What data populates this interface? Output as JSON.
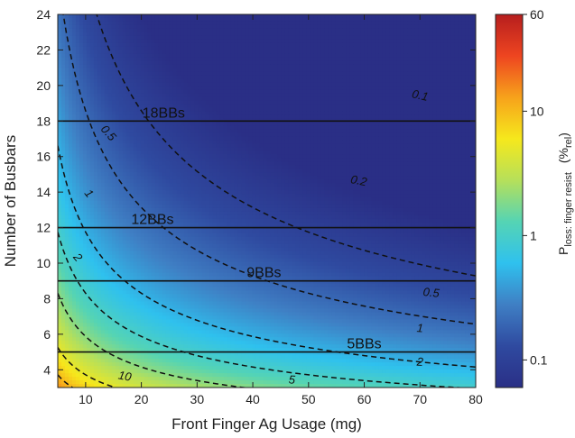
{
  "chart_data": {
    "type": "heatmap",
    "description_free": true,
    "x_axis": {
      "label": "Front Finger Ag Usage (mg)",
      "range": [
        5,
        80
      ],
      "ticks": [
        10,
        20,
        30,
        40,
        50,
        60,
        70,
        80
      ]
    },
    "y_axis": {
      "label": "Number of Busbars",
      "range": [
        3,
        24
      ],
      "ticks": [
        4,
        6,
        8,
        10,
        12,
        14,
        16,
        18,
        20,
        22,
        24
      ]
    },
    "colorbar": {
      "label_main": "P",
      "label_subscript": "loss: finger resist",
      "label_unit": "(%",
      "label_unit_subscript": "rel",
      "label_unit_close": ")",
      "scale": "log",
      "range": [
        0.06,
        60
      ],
      "ticks": [
        {
          "value": 0.1,
          "label": "0.1"
        },
        {
          "value": 1,
          "label": "1"
        },
        {
          "value": 10,
          "label": "10"
        },
        {
          "value": 60,
          "label": "60"
        }
      ],
      "colors": [
        "#2a2f86",
        "#2f4aa0",
        "#3f7fc4",
        "#2fc1ee",
        "#55d4b4",
        "#b6e05a",
        "#f6e81c",
        "#f7a21b",
        "#ee4520",
        "#b61e1e"
      ]
    },
    "contours": [
      {
        "level": 0.1,
        "label": "0.1",
        "label_pos": [
          70,
          19.4
        ]
      },
      {
        "level": 0.2,
        "label": "0.2",
        "label_pos": [
          59,
          14.6
        ]
      },
      {
        "level": 0.5,
        "label": "0.5",
        "label_pos": [
          14,
          17.3
        ],
        "alt_label": "0.5",
        "alt_label_pos": [
          72,
          8.3
        ]
      },
      {
        "level": 1,
        "label": "1",
        "label_pos": [
          10.5,
          13.9
        ],
        "alt_label": "1",
        "alt_label_pos": [
          70,
          6.3
        ]
      },
      {
        "level": 2,
        "label": "2",
        "label_pos": [
          8.5,
          10.3
        ],
        "alt_label": "2",
        "alt_label_pos": [
          70,
          4.4
        ]
      },
      {
        "level": 5,
        "label": "5",
        "label_pos": [
          47,
          3.4
        ]
      },
      {
        "level": 10,
        "label": "10",
        "label_pos": [
          17,
          3.6
        ]
      }
    ],
    "reference_lines": [
      {
        "y": 18,
        "label": "18BBs",
        "label_x": 24
      },
      {
        "y": 12,
        "label": "12BBs",
        "label_x": 22
      },
      {
        "y": 9,
        "label": "9BBs",
        "label_x": 42
      },
      {
        "y": 5,
        "label": "5BBs",
        "label_x": 60
      }
    ]
  }
}
